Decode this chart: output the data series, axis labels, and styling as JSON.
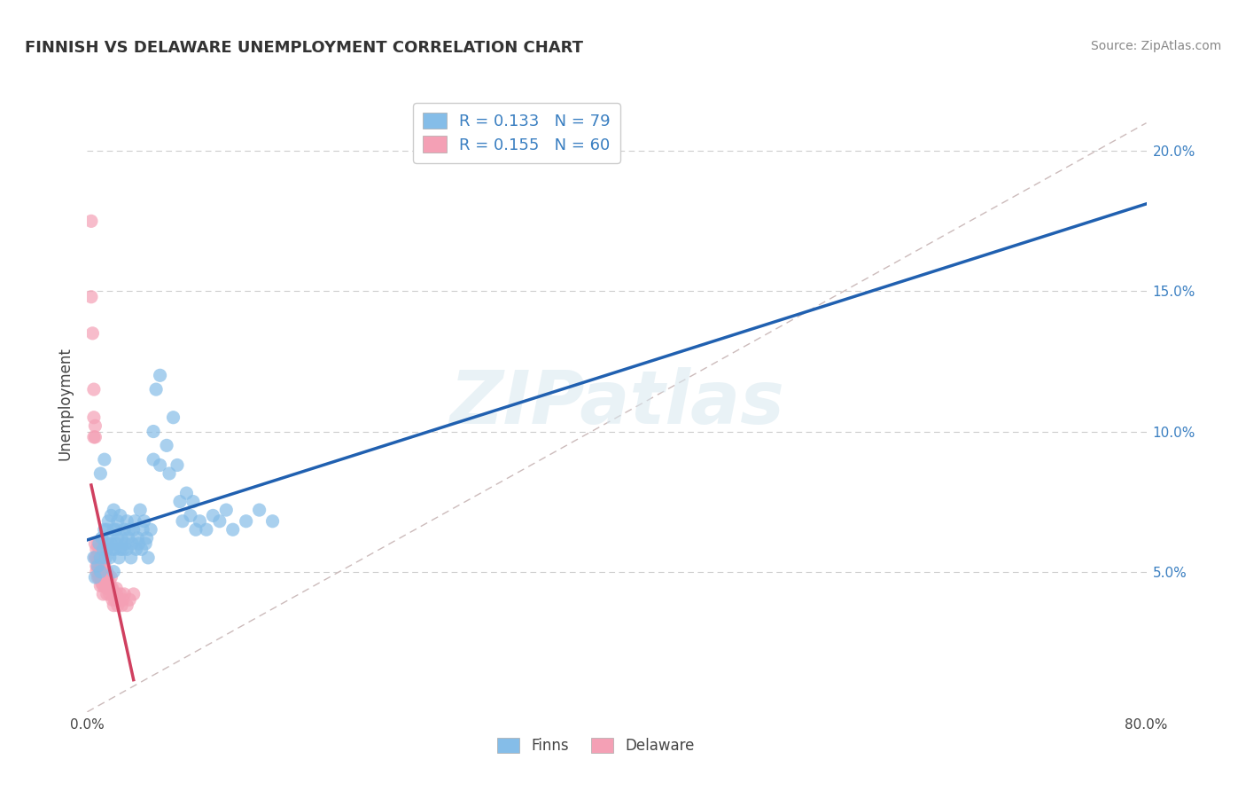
{
  "title": "FINNISH VS DELAWARE UNEMPLOYMENT CORRELATION CHART",
  "source": "Source: ZipAtlas.com",
  "ylabel": "Unemployment",
  "yticks": [
    0.05,
    0.1,
    0.15,
    0.2
  ],
  "ytick_labels": [
    "5.0%",
    "10.0%",
    "15.0%",
    "20.0%"
  ],
  "xlim": [
    0.0,
    0.8
  ],
  "ylim": [
    0.0,
    0.22
  ],
  "legend_r_n": [
    {
      "R": "0.133",
      "N": "79",
      "color": "#85bde8"
    },
    {
      "R": "0.155",
      "N": "60",
      "color": "#f4a0b5"
    }
  ],
  "bottom_legend": [
    {
      "label": "Finns",
      "color": "#85bde8"
    },
    {
      "label": "Delaware",
      "color": "#f4a0b5"
    }
  ],
  "watermark": "ZIPatlas",
  "finns_color": "#85bde8",
  "delaware_color": "#f4a0b5",
  "trend_finns_color": "#2060b0",
  "trend_delaware_color": "#d04060",
  "ref_line_color": "#ccbbbb",
  "background_color": "#ffffff",
  "grid_color": "#cccccc",
  "finns_scatter": [
    [
      0.005,
      0.055
    ],
    [
      0.006,
      0.048
    ],
    [
      0.008,
      0.052
    ],
    [
      0.009,
      0.06
    ],
    [
      0.01,
      0.055
    ],
    [
      0.01,
      0.05
    ],
    [
      0.01,
      0.085
    ],
    [
      0.011,
      0.062
    ],
    [
      0.012,
      0.058
    ],
    [
      0.013,
      0.065
    ],
    [
      0.013,
      0.09
    ],
    [
      0.014,
      0.055
    ],
    [
      0.015,
      0.06
    ],
    [
      0.015,
      0.065
    ],
    [
      0.015,
      0.058
    ],
    [
      0.016,
      0.068
    ],
    [
      0.016,
      0.062
    ],
    [
      0.017,
      0.055
    ],
    [
      0.018,
      0.06
    ],
    [
      0.018,
      0.07
    ],
    [
      0.019,
      0.058
    ],
    [
      0.02,
      0.065
    ],
    [
      0.02,
      0.072
    ],
    [
      0.02,
      0.05
    ],
    [
      0.021,
      0.058
    ],
    [
      0.022,
      0.065
    ],
    [
      0.022,
      0.06
    ],
    [
      0.023,
      0.068
    ],
    [
      0.023,
      0.062
    ],
    [
      0.024,
      0.055
    ],
    [
      0.025,
      0.058
    ],
    [
      0.025,
      0.07
    ],
    [
      0.026,
      0.062
    ],
    [
      0.027,
      0.058
    ],
    [
      0.028,
      0.065
    ],
    [
      0.029,
      0.06
    ],
    [
      0.03,
      0.068
    ],
    [
      0.03,
      0.058
    ],
    [
      0.031,
      0.062
    ],
    [
      0.032,
      0.065
    ],
    [
      0.033,
      0.055
    ],
    [
      0.034,
      0.06
    ],
    [
      0.035,
      0.065
    ],
    [
      0.036,
      0.068
    ],
    [
      0.037,
      0.058
    ],
    [
      0.038,
      0.062
    ],
    [
      0.039,
      0.06
    ],
    [
      0.04,
      0.072
    ],
    [
      0.041,
      0.058
    ],
    [
      0.042,
      0.065
    ],
    [
      0.043,
      0.068
    ],
    [
      0.044,
      0.06
    ],
    [
      0.045,
      0.062
    ],
    [
      0.046,
      0.055
    ],
    [
      0.048,
      0.065
    ],
    [
      0.05,
      0.1
    ],
    [
      0.05,
      0.09
    ],
    [
      0.052,
      0.115
    ],
    [
      0.055,
      0.12
    ],
    [
      0.055,
      0.088
    ],
    [
      0.06,
      0.095
    ],
    [
      0.062,
      0.085
    ],
    [
      0.065,
      0.105
    ],
    [
      0.068,
      0.088
    ],
    [
      0.07,
      0.075
    ],
    [
      0.072,
      0.068
    ],
    [
      0.075,
      0.078
    ],
    [
      0.078,
      0.07
    ],
    [
      0.08,
      0.075
    ],
    [
      0.082,
      0.065
    ],
    [
      0.085,
      0.068
    ],
    [
      0.09,
      0.065
    ],
    [
      0.095,
      0.07
    ],
    [
      0.1,
      0.068
    ],
    [
      0.105,
      0.072
    ],
    [
      0.11,
      0.065
    ],
    [
      0.12,
      0.068
    ],
    [
      0.13,
      0.072
    ],
    [
      0.14,
      0.068
    ]
  ],
  "delaware_scatter": [
    [
      0.003,
      0.175
    ],
    [
      0.003,
      0.148
    ],
    [
      0.004,
      0.135
    ],
    [
      0.005,
      0.115
    ],
    [
      0.005,
      0.105
    ],
    [
      0.005,
      0.098
    ],
    [
      0.006,
      0.098
    ],
    [
      0.006,
      0.102
    ],
    [
      0.006,
      0.06
    ],
    [
      0.006,
      0.055
    ],
    [
      0.007,
      0.052
    ],
    [
      0.007,
      0.055
    ],
    [
      0.007,
      0.058
    ],
    [
      0.007,
      0.05
    ],
    [
      0.008,
      0.048
    ],
    [
      0.008,
      0.052
    ],
    [
      0.008,
      0.06
    ],
    [
      0.009,
      0.055
    ],
    [
      0.009,
      0.048
    ],
    [
      0.009,
      0.058
    ],
    [
      0.01,
      0.045
    ],
    [
      0.01,
      0.052
    ],
    [
      0.01,
      0.05
    ],
    [
      0.01,
      0.048
    ],
    [
      0.011,
      0.046
    ],
    [
      0.011,
      0.052
    ],
    [
      0.011,
      0.048
    ],
    [
      0.012,
      0.055
    ],
    [
      0.012,
      0.045
    ],
    [
      0.012,
      0.042
    ],
    [
      0.013,
      0.05
    ],
    [
      0.013,
      0.048
    ],
    [
      0.013,
      0.052
    ],
    [
      0.014,
      0.045
    ],
    [
      0.014,
      0.048
    ],
    [
      0.015,
      0.05
    ],
    [
      0.015,
      0.044
    ],
    [
      0.015,
      0.042
    ],
    [
      0.016,
      0.048
    ],
    [
      0.016,
      0.045
    ],
    [
      0.017,
      0.042
    ],
    [
      0.017,
      0.046
    ],
    [
      0.018,
      0.044
    ],
    [
      0.018,
      0.048
    ],
    [
      0.019,
      0.04
    ],
    [
      0.019,
      0.044
    ],
    [
      0.02,
      0.042
    ],
    [
      0.02,
      0.038
    ],
    [
      0.021,
      0.04
    ],
    [
      0.022,
      0.042
    ],
    [
      0.022,
      0.044
    ],
    [
      0.023,
      0.038
    ],
    [
      0.024,
      0.04
    ],
    [
      0.025,
      0.042
    ],
    [
      0.026,
      0.038
    ],
    [
      0.027,
      0.04
    ],
    [
      0.028,
      0.042
    ],
    [
      0.03,
      0.038
    ],
    [
      0.032,
      0.04
    ],
    [
      0.035,
      0.042
    ]
  ]
}
